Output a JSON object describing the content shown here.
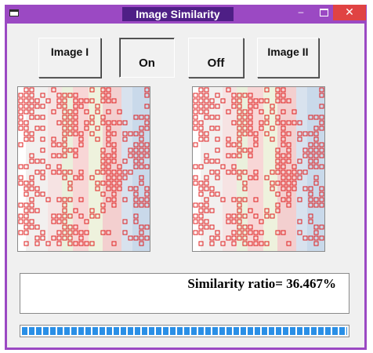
{
  "window": {
    "title": "Image Similarity",
    "controls": {
      "minimize": "–",
      "close": "✕"
    }
  },
  "buttons": {
    "image1": "Image I",
    "on": "On",
    "off": "Off",
    "image2": "Image II"
  },
  "result": {
    "text": "Similarity ratio= 36.467%"
  },
  "progress": {
    "value": 1.0
  },
  "colors": {
    "titlebar": "#9b49c3",
    "title_bg": "#4e1f86",
    "close": "#e04343",
    "progress": "#2a8fe6",
    "grid": "#e02020"
  }
}
